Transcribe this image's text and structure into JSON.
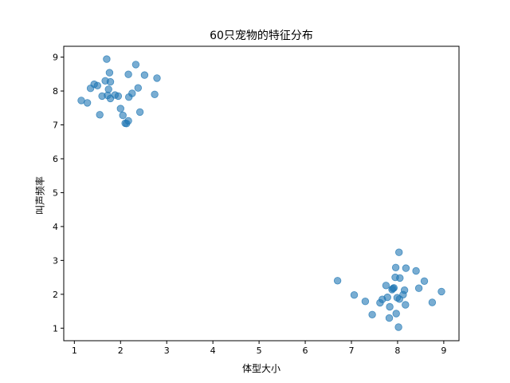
{
  "chart_data": {
    "type": "scatter",
    "title": "60只宠物的特征分布",
    "xlabel": "体型大小",
    "ylabel": "叫声频率",
    "xlim": [
      0.77,
      9.33
    ],
    "ylim": [
      0.63,
      9.32
    ],
    "xticks": [
      1,
      2,
      3,
      4,
      5,
      6,
      7,
      8,
      9
    ],
    "yticks": [
      1,
      2,
      3,
      4,
      5,
      6,
      7,
      8,
      9
    ],
    "grid": false,
    "marker_color": "#1f77b4",
    "marker_alpha": 0.6,
    "points": [
      {
        "x": 1.15,
        "y": 7.72
      },
      {
        "x": 1.28,
        "y": 7.65
      },
      {
        "x": 1.35,
        "y": 8.08
      },
      {
        "x": 1.43,
        "y": 8.2
      },
      {
        "x": 1.5,
        "y": 8.16
      },
      {
        "x": 1.55,
        "y": 7.3
      },
      {
        "x": 1.6,
        "y": 7.85
      },
      {
        "x": 1.67,
        "y": 8.3
      },
      {
        "x": 1.7,
        "y": 8.94
      },
      {
        "x": 1.72,
        "y": 7.87
      },
      {
        "x": 1.74,
        "y": 8.05
      },
      {
        "x": 1.76,
        "y": 8.54
      },
      {
        "x": 1.78,
        "y": 8.27
      },
      {
        "x": 1.78,
        "y": 7.78
      },
      {
        "x": 1.88,
        "y": 7.88
      },
      {
        "x": 1.95,
        "y": 7.85
      },
      {
        "x": 2.0,
        "y": 7.48
      },
      {
        "x": 2.05,
        "y": 7.28
      },
      {
        "x": 2.1,
        "y": 7.05
      },
      {
        "x": 2.13,
        "y": 7.04
      },
      {
        "x": 2.17,
        "y": 7.12
      },
      {
        "x": 2.17,
        "y": 8.49
      },
      {
        "x": 2.18,
        "y": 7.82
      },
      {
        "x": 2.25,
        "y": 7.93
      },
      {
        "x": 2.33,
        "y": 8.78
      },
      {
        "x": 2.38,
        "y": 8.09
      },
      {
        "x": 2.42,
        "y": 7.38
      },
      {
        "x": 2.52,
        "y": 8.47
      },
      {
        "x": 2.74,
        "y": 7.9
      },
      {
        "x": 2.79,
        "y": 8.38
      },
      {
        "x": 6.7,
        "y": 2.4
      },
      {
        "x": 7.06,
        "y": 1.98
      },
      {
        "x": 7.3,
        "y": 1.79
      },
      {
        "x": 7.45,
        "y": 1.4
      },
      {
        "x": 7.62,
        "y": 1.75
      },
      {
        "x": 7.67,
        "y": 1.85
      },
      {
        "x": 7.75,
        "y": 2.26
      },
      {
        "x": 7.78,
        "y": 1.91
      },
      {
        "x": 7.82,
        "y": 1.3
      },
      {
        "x": 7.83,
        "y": 1.63
      },
      {
        "x": 7.88,
        "y": 2.14
      },
      {
        "x": 7.92,
        "y": 2.19
      },
      {
        "x": 7.95,
        "y": 2.5
      },
      {
        "x": 7.96,
        "y": 2.79
      },
      {
        "x": 7.97,
        "y": 1.43
      },
      {
        "x": 7.99,
        "y": 1.9
      },
      {
        "x": 8.02,
        "y": 1.03
      },
      {
        "x": 8.03,
        "y": 3.24
      },
      {
        "x": 8.04,
        "y": 1.86
      },
      {
        "x": 8.05,
        "y": 2.48
      },
      {
        "x": 8.12,
        "y": 1.99
      },
      {
        "x": 8.15,
        "y": 2.12
      },
      {
        "x": 8.17,
        "y": 1.69
      },
      {
        "x": 8.18,
        "y": 2.77
      },
      {
        "x": 8.4,
        "y": 2.69
      },
      {
        "x": 8.46,
        "y": 2.18
      },
      {
        "x": 8.58,
        "y": 2.39
      },
      {
        "x": 8.75,
        "y": 1.76
      },
      {
        "x": 8.95,
        "y": 2.08
      },
      {
        "x": 7.9,
        "y": 2.17
      }
    ]
  }
}
